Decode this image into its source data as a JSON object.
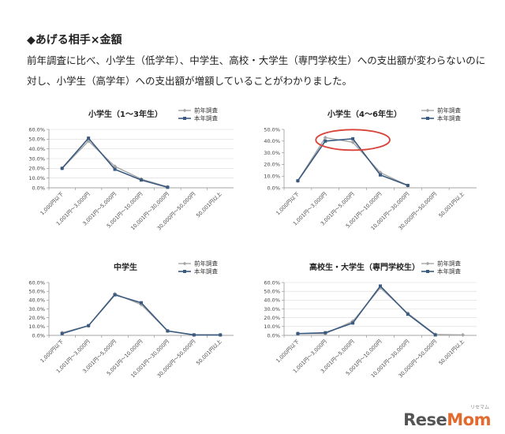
{
  "heading": "◆あげる相手×金額",
  "description": "前年調査に比べ、小学生（低学年）、中学生、高校・大学生（専門学校生）への支出額が変わらないのに対し、小学生（高学年）への支出額が増額していることがわかりました。",
  "logo": {
    "text_main": "Rese",
    "text_accent": "Mom",
    "sub": "リセマム"
  },
  "colors": {
    "prev": "#a6a6a6",
    "curr": "#3a5a80",
    "highlight": "#d9433a",
    "grid": "#d9d9d9"
  },
  "chart_data": [
    {
      "type": "line",
      "title": "小学生（1～3年生）",
      "categories": [
        "1,000円以下",
        "1,001円～3,000円",
        "3,001円～5,000円",
        "5,001円～10,000円",
        "10,001円～30,000円",
        "30,000円～50,000円",
        "50,001円以上"
      ],
      "ylim": [
        0,
        60
      ],
      "yticks": [
        "0.0%",
        "10.0%",
        "20.0%",
        "30.0%",
        "40.0%",
        "50.0%",
        "60.0%"
      ],
      "grid": true,
      "legend": "top-right",
      "series": [
        {
          "name": "前年調査",
          "values": [
            20,
            48,
            22,
            9,
            1,
            null,
            null
          ]
        },
        {
          "name": "本年調査",
          "values": [
            20,
            51,
            19,
            8,
            0.5,
            null,
            null
          ]
        }
      ]
    },
    {
      "type": "line",
      "title": "小学生（4～6年生）",
      "categories": [
        "1,000円以下",
        "1,001円～3,000円",
        "3,001円～5,000円",
        "5,001円～10,000円",
        "10,001円～30,000円",
        "30,000円～50,000円",
        "50,001円以上"
      ],
      "ylim": [
        0,
        50
      ],
      "yticks": [
        "0.0%",
        "10.0%",
        "20.0%",
        "30.0%",
        "40.0%",
        "50.0%"
      ],
      "grid": false,
      "legend": "top-right",
      "highlight_categories": [
        1,
        3
      ],
      "series": [
        {
          "name": "前年調査",
          "values": [
            6,
            43,
            39,
            13,
            2,
            null,
            null
          ]
        },
        {
          "name": "本年調査",
          "values": [
            6,
            40,
            42,
            11,
            2,
            null,
            null
          ]
        }
      ]
    },
    {
      "type": "line",
      "title": "中学生",
      "categories": [
        "1,000円以下",
        "1,001円～3,000円",
        "3,001円～5,000円",
        "5,001円～10,000円",
        "10,001円～30,000円",
        "30,000円～50,000円",
        "50,001円以上"
      ],
      "ylim": [
        0,
        60
      ],
      "yticks": [
        "0.0%",
        "10.0%",
        "20.0%",
        "30.0%",
        "40.0%",
        "50.0%",
        "60.0%"
      ],
      "grid": false,
      "legend": "top-right",
      "series": [
        {
          "name": "前年調査",
          "values": [
            3,
            11,
            47,
            35,
            5,
            0.5,
            0.5
          ]
        },
        {
          "name": "本年調査",
          "values": [
            2,
            11,
            46,
            37,
            5,
            0.5,
            0.5
          ]
        }
      ]
    },
    {
      "type": "line",
      "title": "高校生・大学生（専門学校生）",
      "categories": [
        "1,000円以下",
        "1,001円～3,000円",
        "3,001円～5,000円",
        "5,001円～10,000円",
        "10,001円～30,000円",
        "30,000円～50,000円",
        "50,001円以上"
      ],
      "ylim": [
        0,
        60
      ],
      "yticks": [
        "0.0%",
        "10.0%",
        "20.0%",
        "30.0%",
        "40.0%",
        "50.0%",
        "60.0%"
      ],
      "grid": true,
      "legend": "top-right",
      "series": [
        {
          "name": "前年調査",
          "values": [
            2,
            2,
            16,
            54,
            25,
            1,
            0.5
          ]
        },
        {
          "name": "本年調査",
          "values": [
            2,
            3,
            14,
            56,
            24,
            0.5,
            null
          ]
        }
      ]
    }
  ]
}
